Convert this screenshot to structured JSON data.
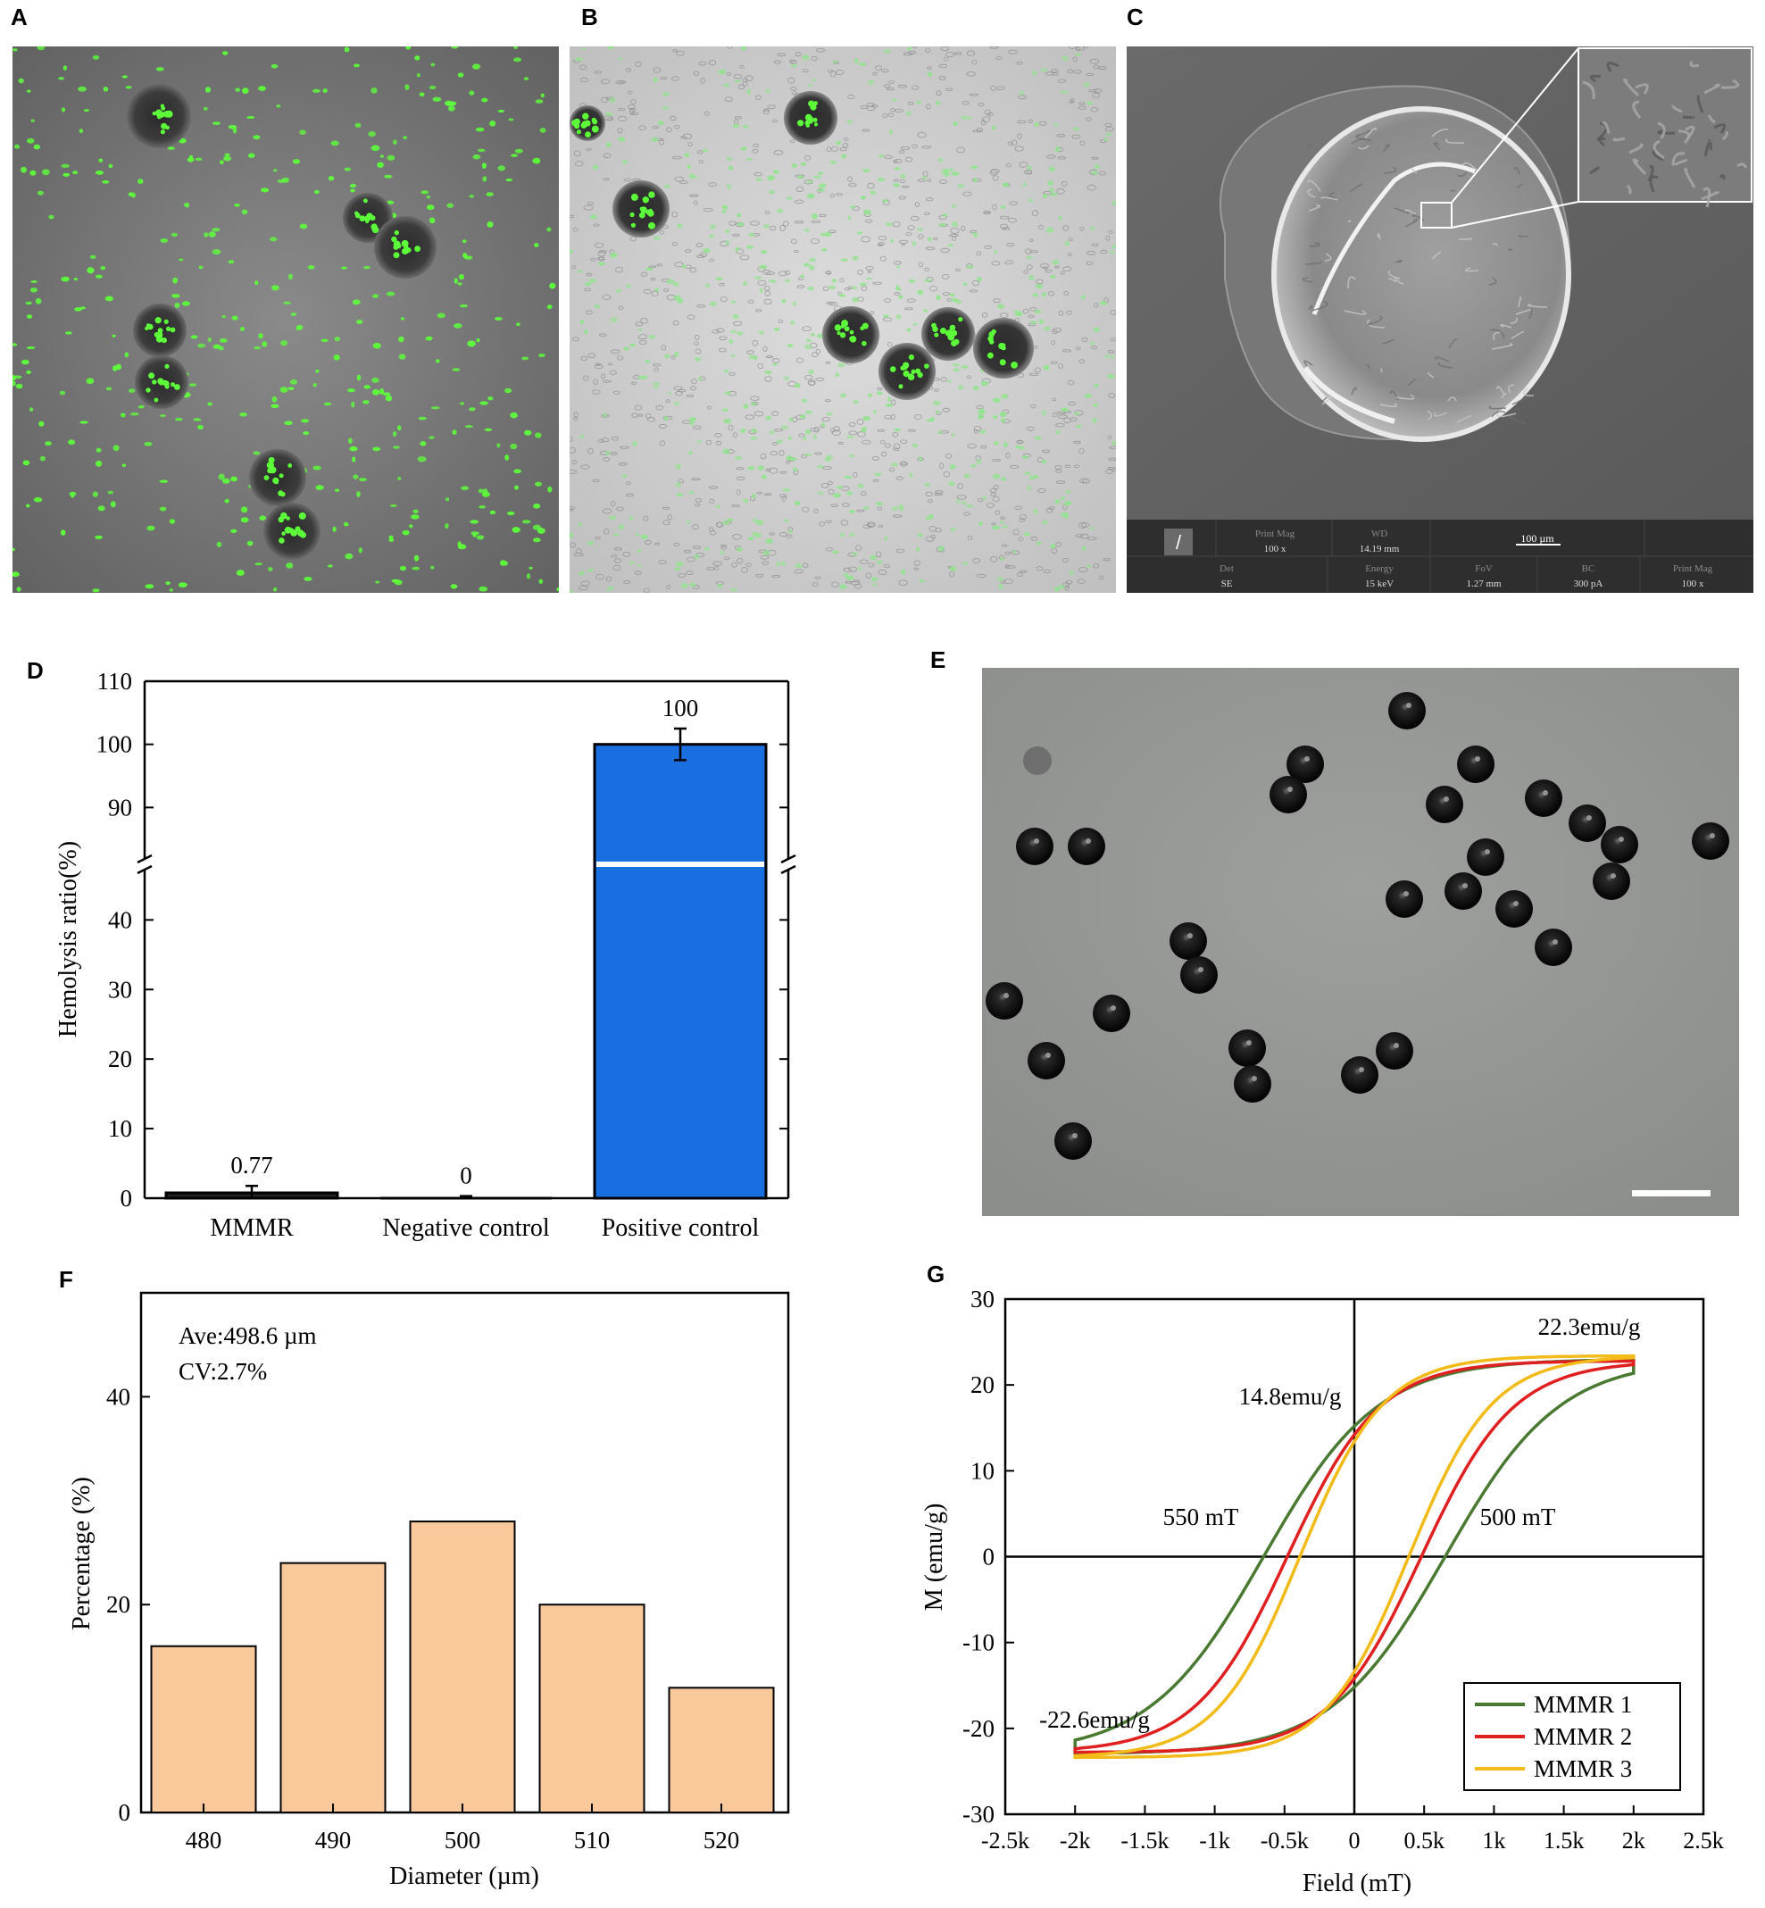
{
  "panels": {
    "a": {
      "letter": "A"
    },
    "b": {
      "letter": "B"
    },
    "c": {
      "letter": "C",
      "sem": {
        "print_mag_label": "Print Mag",
        "print_mag_value": "100 x",
        "wd_label": "WD",
        "wd_value": "14.19 mm",
        "scale_label": "100 µm",
        "det_label": "Det",
        "det_value": "SE",
        "energy_label": "Energy",
        "energy_value": "15 keV",
        "fov_label": "FoV",
        "fov_value": "1.27 mm",
        "bc_label": "BC",
        "bc_value": "300 pA",
        "print_mag2_label": "Print Mag",
        "print_mag2_value": "100 x"
      }
    },
    "d": {
      "letter": "D"
    },
    "e": {
      "letter": "E"
    },
    "f": {
      "letter": "F"
    },
    "g": {
      "letter": "G"
    }
  },
  "chart_data": [
    {
      "id": "D",
      "type": "bar",
      "ylabel": "Hemolysis ratio(%)",
      "categories": [
        "MMMR",
        "Negative control",
        "Positive control"
      ],
      "values": [
        0.77,
        0,
        100
      ],
      "errors": [
        1.0,
        0.3,
        2.5
      ],
      "value_labels": [
        "0.77",
        "0",
        "100"
      ],
      "y_broken": true,
      "y_lower_range": [
        0,
        48
      ],
      "y_upper_range": [
        81,
        110
      ],
      "y_ticks": [
        0,
        10,
        20,
        30,
        40,
        90,
        100,
        110
      ],
      "bar_color": "#1a6fe0"
    },
    {
      "id": "F",
      "type": "bar",
      "xlabel": "Diameter (µm)",
      "ylabel": "Percentage (%)",
      "categories": [
        "480",
        "490",
        "500",
        "510",
        "520"
      ],
      "values": [
        16,
        24,
        28,
        20,
        12
      ],
      "ylim": [
        0,
        50
      ],
      "y_ticks": [
        0,
        20,
        40
      ],
      "annotations": [
        "Ave:498.6 µm",
        "CV:2.7%"
      ],
      "bar_color": "#f9c99b"
    },
    {
      "id": "G",
      "type": "line",
      "xlabel": "Field (mT)",
      "ylabel": "M (emu/g)",
      "xlim": [
        -2500,
        2500
      ],
      "ylim": [
        -30,
        30
      ],
      "x_ticks": [
        "-2.5k",
        "-2k",
        "-1.5k",
        "-1k",
        "-0.5k",
        "0",
        "0.5k",
        "1k",
        "1.5k",
        "2k",
        "2.5k"
      ],
      "y_ticks": [
        -30,
        -20,
        -10,
        0,
        10,
        20,
        30
      ],
      "legend_position": "bottom-right",
      "series": [
        {
          "name": "MMMR 1",
          "color": "#4a7a32",
          "Ms": 23.0,
          "Mr": 15.2,
          "Hc": 650,
          "n": 2.4
        },
        {
          "name": "MMMR 2",
          "color": "#e02020",
          "Ms": 22.8,
          "Mr": 14.2,
          "Hc": 480,
          "n": 2.2
        },
        {
          "name": "MMMR 3",
          "color": "#f2bb1a",
          "Ms": 23.4,
          "Mr": 13.4,
          "Hc": 390,
          "n": 2.2
        }
      ],
      "annotations": [
        {
          "text": "22.3emu/g"
        },
        {
          "text": "14.8emu/g"
        },
        {
          "text": "550 mT"
        },
        {
          "text": "500 mT"
        },
        {
          "text": "-22.6emu/g"
        }
      ]
    }
  ]
}
